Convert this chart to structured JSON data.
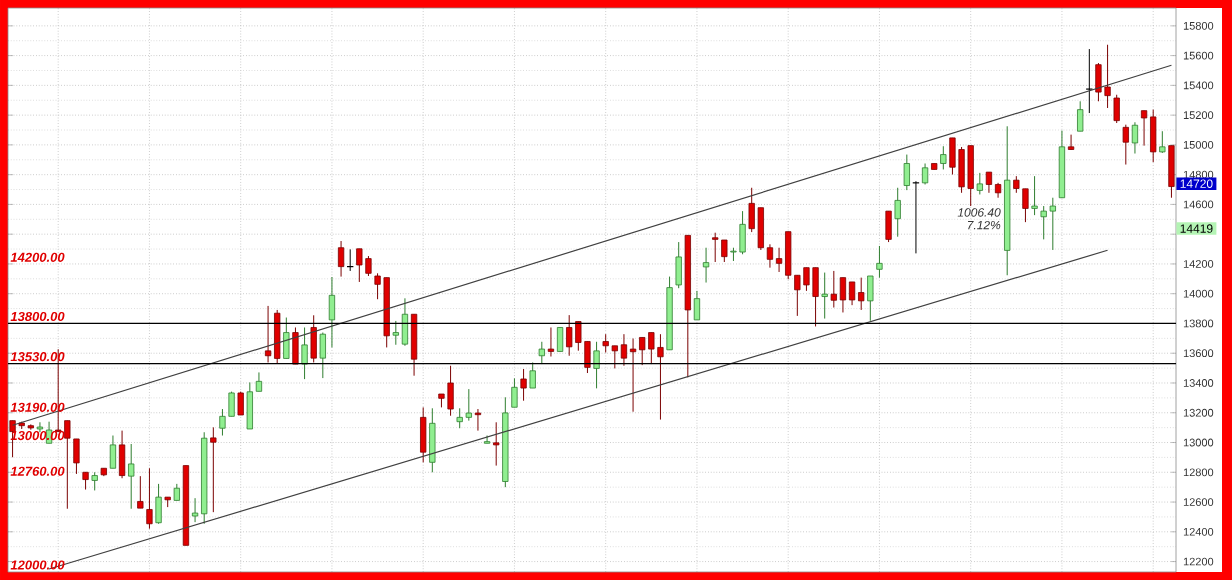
{
  "chart_data": {
    "type": "candlestick",
    "categories": [
      null,
      null,
      null,
      null,
      null,
      null,
      null,
      null,
      null,
      null,
      null,
      null,
      null,
      null,
      null,
      null,
      null,
      null,
      null,
      null,
      null,
      null,
      null,
      null,
      null,
      null,
      null,
      null,
      null,
      null,
      null,
      null,
      null,
      null,
      null,
      null,
      null,
      null,
      null,
      null,
      null,
      null,
      null,
      null,
      null,
      null,
      null,
      null,
      null,
      null,
      null,
      null,
      null,
      null,
      null,
      null,
      null,
      null,
      null,
      null,
      null,
      null,
      null,
      null,
      null,
      null,
      null,
      null,
      null,
      null,
      null,
      null,
      null,
      null,
      null,
      null,
      null,
      null,
      null,
      null,
      null,
      null,
      null,
      null,
      null,
      null,
      null,
      null,
      null,
      null,
      null,
      null,
      null,
      null,
      null,
      null,
      null,
      null,
      null,
      null,
      null,
      null,
      null,
      null,
      null,
      null,
      null,
      null,
      null,
      null,
      null,
      null,
      null,
      null,
      null,
      null,
      null,
      null,
      null,
      null,
      null,
      null,
      null,
      null,
      null,
      null,
      null,
      null
    ],
    "ohlc": [
      [
        13147,
        13147,
        12901,
        13073
      ],
      [
        13131,
        13140,
        13091,
        13113
      ],
      [
        13113,
        13122,
        13086,
        13098
      ],
      [
        13091,
        13136,
        13069,
        13104
      ],
      [
        12995,
        13140,
        12995,
        13084
      ],
      [
        13084,
        13627,
        13073,
        13073
      ],
      [
        13147,
        13147,
        12555,
        13029
      ],
      [
        13024,
        13024,
        12789,
        12863
      ],
      [
        12800,
        12800,
        12684,
        12751
      ],
      [
        12745,
        12800,
        12678,
        12778
      ],
      [
        12827,
        12827,
        12774,
        12783
      ],
      [
        12827,
        13047,
        12827,
        12984
      ],
      [
        12984,
        13080,
        12760,
        12778
      ],
      [
        12774,
        12990,
        12555,
        12856
      ],
      [
        12604,
        12774,
        12559,
        12559
      ],
      [
        12550,
        12827,
        12421,
        12454
      ],
      [
        12461,
        12722,
        12454,
        12633
      ],
      [
        12633,
        12633,
        12566,
        12615
      ],
      [
        12611,
        12722,
        12611,
        12693
      ],
      [
        12845,
        12845,
        12309,
        12309
      ],
      [
        12506,
        12626,
        12465,
        12526
      ],
      [
        12521,
        13069,
        12454,
        13029
      ],
      [
        13031,
        13102,
        12532,
        13002
      ],
      [
        13096,
        13225,
        13047,
        13176
      ],
      [
        13176,
        13342,
        13176,
        13333
      ],
      [
        13333,
        13342,
        13185,
        13185
      ],
      [
        13091,
        13404,
        13091,
        13341
      ],
      [
        13344,
        13471,
        13344,
        13411
      ],
      [
        13616,
        13918,
        13538,
        13583
      ],
      [
        13869,
        13891,
        13533,
        13565
      ],
      [
        13565,
        13840,
        13565,
        13739
      ],
      [
        13739,
        13773,
        13527,
        13527
      ],
      [
        13527,
        13773,
        13426,
        13656
      ],
      [
        13773,
        13855,
        13538,
        13567
      ],
      [
        13567,
        13739,
        13433,
        13728
      ],
      [
        13824,
        14112,
        13639,
        13989
      ],
      [
        14309,
        14354,
        14115,
        14182
      ],
      [
        14182,
        14298,
        14153,
        14182
      ],
      [
        14302,
        14302,
        14079,
        14193
      ],
      [
        14236,
        14253,
        14119,
        14137
      ],
      [
        14119,
        14137,
        13963,
        14063
      ],
      [
        14108,
        14108,
        13639,
        13717
      ],
      [
        13721,
        13817,
        13657,
        13739
      ],
      [
        13661,
        13969,
        13650,
        13862
      ],
      [
        13862,
        13862,
        13449,
        13560
      ],
      [
        13169,
        13236,
        12867,
        12935
      ],
      [
        12867,
        13230,
        12800,
        13129
      ],
      [
        13326,
        13326,
        13236,
        13297
      ],
      [
        13400,
        13516,
        13180,
        13225
      ],
      [
        13140,
        13230,
        13096,
        13169
      ],
      [
        13169,
        13359,
        13147,
        13198
      ],
      [
        13198,
        13225,
        13080,
        13187
      ],
      [
        12995,
        13047,
        12995,
        13006
      ],
      [
        12998,
        13136,
        12845,
        12984
      ],
      [
        12738,
        13304,
        12700,
        13199
      ],
      [
        13237,
        13431,
        13237,
        13371
      ],
      [
        13427,
        13494,
        13281,
        13366
      ],
      [
        13366,
        13538,
        13366,
        13482
      ],
      [
        13583,
        13677,
        13527,
        13628
      ],
      [
        13628,
        13773,
        13578,
        13612
      ],
      [
        13612,
        13773,
        13612,
        13773
      ],
      [
        13773,
        13856,
        13583,
        13643
      ],
      [
        13813,
        13813,
        13617,
        13672
      ],
      [
        13679,
        13679,
        13467,
        13505
      ],
      [
        13498,
        13677,
        13364,
        13616
      ],
      [
        13679,
        13728,
        13605,
        13650
      ],
      [
        13650,
        13650,
        13498,
        13616
      ],
      [
        13657,
        13728,
        13516,
        13567
      ],
      [
        13628,
        13699,
        13207,
        13610
      ],
      [
        13706,
        13706,
        13520,
        13623
      ],
      [
        13739,
        13739,
        13527,
        13628
      ],
      [
        13639,
        13728,
        13154,
        13576
      ],
      [
        13623,
        14115,
        13623,
        14041
      ],
      [
        14059,
        14347,
        14037,
        14247
      ],
      [
        14392,
        14392,
        13438,
        13891
      ],
      [
        13824,
        14019,
        13824,
        13967
      ],
      [
        14180,
        14309,
        14075,
        14209
      ],
      [
        14376,
        14410,
        14213,
        14365
      ],
      [
        14361,
        14361,
        14213,
        14249
      ],
      [
        14280,
        14309,
        14220,
        14286
      ],
      [
        14280,
        14555,
        14265,
        14466
      ],
      [
        14607,
        14712,
        14414,
        14437
      ],
      [
        14578,
        14578,
        14294,
        14309
      ],
      [
        14309,
        14332,
        14175,
        14231
      ],
      [
        14236,
        14309,
        14146,
        14204
      ],
      [
        14417,
        14417,
        14097,
        14124
      ],
      [
        14124,
        14124,
        13851,
        14026
      ],
      [
        14175,
        14175,
        14019,
        14059
      ],
      [
        14175,
        14175,
        13780,
        13981
      ],
      [
        13981,
        14142,
        13833,
        13997
      ],
      [
        13997,
        14153,
        13907,
        13956
      ],
      [
        14108,
        14108,
        13874,
        13958
      ],
      [
        14079,
        14079,
        13923,
        13958
      ],
      [
        14008,
        14108,
        13891,
        13952
      ],
      [
        13952,
        14119,
        13818,
        14119
      ],
      [
        14164,
        14321,
        14108,
        14204
      ],
      [
        14555,
        14555,
        14347,
        14365
      ],
      [
        14504,
        14712,
        14383,
        14627
      ],
      [
        14727,
        14935,
        14696,
        14875
      ],
      [
        14745,
        14756,
        14271,
        14745
      ],
      [
        14745,
        14875,
        14734,
        14846
      ],
      [
        14875,
        14875,
        14835,
        14835
      ],
      [
        14875,
        14991,
        14835,
        14935
      ],
      [
        15047,
        15047,
        14801,
        14850
      ],
      [
        14969,
        14986,
        14678,
        14718
      ],
      [
        14995,
        14995,
        14589,
        14707
      ],
      [
        14694,
        14812,
        14667,
        14738
      ],
      [
        14817,
        14817,
        14678,
        14734
      ],
      [
        14734,
        14745,
        14645,
        14678
      ],
      [
        14291,
        15125,
        14124,
        14763
      ],
      [
        14763,
        14790,
        14678,
        14707
      ],
      [
        14705,
        14705,
        14481,
        14573
      ],
      [
        14573,
        14790,
        14528,
        14589
      ],
      [
        14517,
        14589,
        14365,
        14555
      ],
      [
        14555,
        14645,
        14294,
        14589
      ],
      [
        14645,
        15096,
        14645,
        14987
      ],
      [
        14987,
        15069,
        14969,
        14969
      ],
      [
        15092,
        15293,
        15092,
        15237
      ],
      [
        15375,
        15644,
        15214,
        15375
      ],
      [
        15539,
        15550,
        15293,
        15355
      ],
      [
        15389,
        15673,
        15248,
        15331
      ],
      [
        15315,
        15337,
        15147,
        15163
      ],
      [
        15118,
        15136,
        14868,
        15018
      ],
      [
        15013,
        15152,
        14942,
        15132
      ],
      [
        15230,
        15230,
        14995,
        15181
      ],
      [
        15188,
        15237,
        14884,
        14953
      ],
      [
        14953,
        15092,
        14946,
        14987
      ],
      [
        14995,
        14995,
        14645,
        14720
      ]
    ],
    "series": [
      {
        "type": "line",
        "color": "#404040",
        "values": [
          13116,
          null,
          null,
          null,
          null,
          null,
          null,
          null,
          null,
          null,
          null,
          null,
          null,
          null,
          null,
          null,
          null,
          null,
          null,
          null,
          null,
          null,
          null,
          null,
          null,
          null,
          null,
          null,
          null,
          null,
          null,
          null,
          null,
          null,
          null,
          null,
          null,
          null,
          null,
          null,
          null,
          null,
          null,
          null,
          null,
          null,
          null,
          null,
          null,
          null,
          null,
          null,
          null,
          null,
          null,
          null,
          null,
          null,
          null,
          null,
          null,
          null,
          null,
          null,
          null,
          null,
          null,
          null,
          null,
          null,
          null,
          null,
          null,
          null,
          null,
          null,
          null,
          null,
          null,
          null,
          null,
          null,
          null,
          null,
          null,
          null,
          null,
          null,
          null,
          null,
          null,
          null,
          null,
          null,
          null,
          null,
          null,
          null,
          null,
          null,
          null,
          null,
          null,
          null,
          null,
          null,
          null,
          null,
          null,
          null,
          null,
          null,
          null,
          null,
          null,
          null,
          null,
          null,
          null,
          null,
          null,
          null,
          null,
          null,
          null,
          null,
          null,
          15535
        ]
      },
      {
        "type": "line",
        "color": "#404040",
        "values": [
          null,
          null,
          null,
          null,
          12150,
          null,
          null,
          null,
          null,
          null,
          null,
          null,
          null,
          null,
          null,
          null,
          null,
          null,
          null,
          null,
          null,
          null,
          null,
          null,
          null,
          null,
          null,
          null,
          null,
          null,
          null,
          null,
          null,
          null,
          null,
          null,
          null,
          null,
          null,
          null,
          null,
          null,
          null,
          null,
          null,
          null,
          null,
          null,
          null,
          null,
          null,
          null,
          null,
          null,
          null,
          null,
          null,
          null,
          null,
          null,
          null,
          null,
          null,
          null,
          null,
          null,
          null,
          null,
          null,
          null,
          null,
          null,
          null,
          null,
          null,
          null,
          null,
          null,
          null,
          null,
          null,
          null,
          null,
          null,
          null,
          null,
          null,
          null,
          null,
          null,
          null,
          null,
          null,
          null,
          null,
          null,
          null,
          null,
          null,
          null,
          null,
          null,
          null,
          null,
          null,
          null,
          null,
          null,
          null,
          null,
          null,
          null,
          null,
          null,
          null,
          null,
          null,
          null,
          null,
          null,
          14292,
          null,
          null,
          null,
          null,
          null,
          null,
          null
        ]
      }
    ],
    "ylim": [
      12130,
      15920
    ],
    "yticks": [
      12200,
      12400,
      12600,
      12800,
      13000,
      13200,
      13400,
      13600,
      13800,
      14000,
      14200,
      {
        "value": 14400,
        "label": null
      },
      14600,
      14800,
      15000,
      15200,
      15400,
      15600,
      15800
    ],
    "tick_labels": "y",
    "grid": true,
    "ref_lines": [
      {
        "axis": "y",
        "value": 13800,
        "label": "13800.00",
        "color": "#000000",
        "line_style": "solid"
      },
      {
        "axis": "y",
        "value": 13530,
        "label": "13530.00",
        "color": "#000000",
        "line_style": "solid"
      }
    ],
    "annotations": [
      "14200.00",
      "13190.00",
      "13000.00",
      "12760.00",
      "12000.00",
      "1006.40",
      "7.12%",
      "14720",
      "14419"
    ]
  }
}
